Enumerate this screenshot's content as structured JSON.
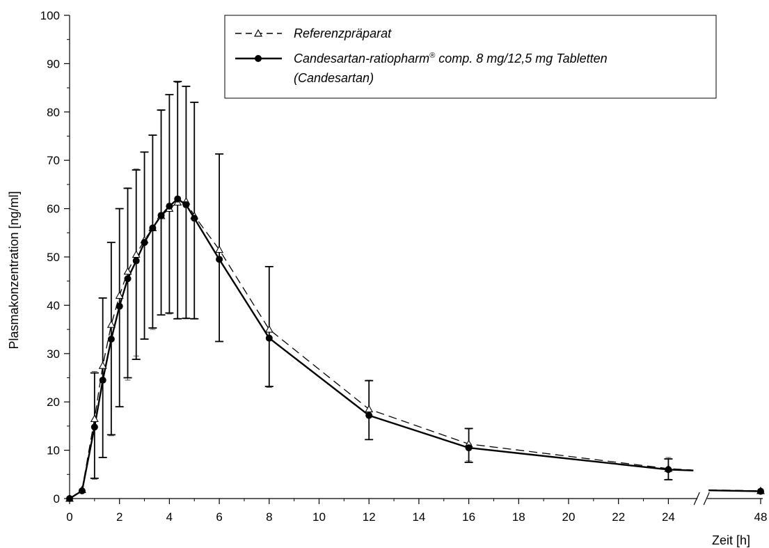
{
  "chart_data": {
    "type": "line",
    "xlabel": "Zeit [h]",
    "ylabel": "Plasmakonzentration [ng/ml]",
    "ylim": [
      0,
      100
    ],
    "xlim": [
      0,
      25
    ],
    "x_break": {
      "after": 25,
      "resume_at": 48
    },
    "xticks": [
      0,
      2,
      4,
      6,
      8,
      10,
      12,
      14,
      16,
      18,
      20,
      22,
      24,
      48
    ],
    "xtick_labels": [
      "0",
      "2",
      "4",
      "6",
      "8",
      "10",
      "12",
      "14",
      "16",
      "18",
      "20",
      "22",
      "24",
      "48"
    ],
    "yticks": [
      0,
      10,
      20,
      30,
      40,
      50,
      60,
      70,
      80,
      90,
      100
    ],
    "ytick_labels": [
      "0",
      "10",
      "20",
      "30",
      "40",
      "50",
      "60",
      "70",
      "80",
      "90",
      "100"
    ],
    "grid": false,
    "legend": {
      "placement": "top-right"
    },
    "series": [
      {
        "name": "Referenzpräparat",
        "line_style": "dashed",
        "marker": "open-triangle",
        "color": "#000000",
        "x": [
          0,
          0.5,
          1,
          1.33,
          1.67,
          2,
          2.33,
          2.67,
          3,
          3.33,
          3.67,
          4,
          4.33,
          4.67,
          5,
          6,
          8,
          12,
          16,
          24,
          25,
          48
        ],
        "y": [
          0,
          1.8,
          16.5,
          27.5,
          36,
          42,
          47,
          50.5,
          53.5,
          56,
          58.5,
          60,
          61.3,
          61.5,
          58.5,
          51.5,
          35,
          18.5,
          11.3,
          6.2,
          5.9,
          1.6
        ],
        "error_plus": [
          0,
          0,
          9.8,
          14,
          17,
          18,
          17.3,
          17.7,
          18.2,
          19.2,
          21.8,
          23.6,
          24.8,
          23.8,
          23.5,
          19.8,
          13,
          6,
          3.1,
          2.3,
          0,
          0
        ],
        "error_minus": [
          0,
          0,
          12.5,
          19,
          23,
          23,
          22.5,
          21,
          20.5,
          21,
          20.5,
          21.8,
          24,
          24.3,
          21.2,
          19,
          12,
          6.3,
          3.5,
          2.2,
          0,
          0
        ]
      },
      {
        "name": "Candesartan-ratiopharm® comp. 8 mg/12,5 mg Tabletten (Candesartan)",
        "line_style": "solid",
        "marker": "filled-circle",
        "color": "#000000",
        "x": [
          0,
          0.5,
          1,
          1.33,
          1.67,
          2,
          2.33,
          2.67,
          3,
          3.33,
          3.67,
          4,
          4.33,
          4.67,
          5,
          6,
          8,
          12,
          16,
          24,
          25,
          48
        ],
        "y": [
          0,
          1.6,
          14.8,
          24.5,
          33,
          39.8,
          45.5,
          49.2,
          53,
          56,
          58.6,
          60.5,
          62,
          60.8,
          58,
          49.5,
          33.2,
          17.2,
          10.5,
          6,
          5.8,
          1.5
        ],
        "error_plus": [
          0,
          0,
          11.2,
          17,
          20,
          20.2,
          18.7,
          18.8,
          18.7,
          19.2,
          21.8,
          23.1,
          24.3,
          24.5,
          24,
          21.8,
          14.8,
          7.2,
          4,
          2.2,
          0,
          0
        ],
        "error_minus": [
          0,
          0,
          10.6,
          16,
          19.8,
          20.8,
          20.5,
          20.4,
          20,
          20.7,
          20.6,
          22.1,
          24.8,
          23.5,
          20.8,
          17,
          10,
          5,
          3,
          2.1,
          0,
          0
        ]
      }
    ]
  }
}
